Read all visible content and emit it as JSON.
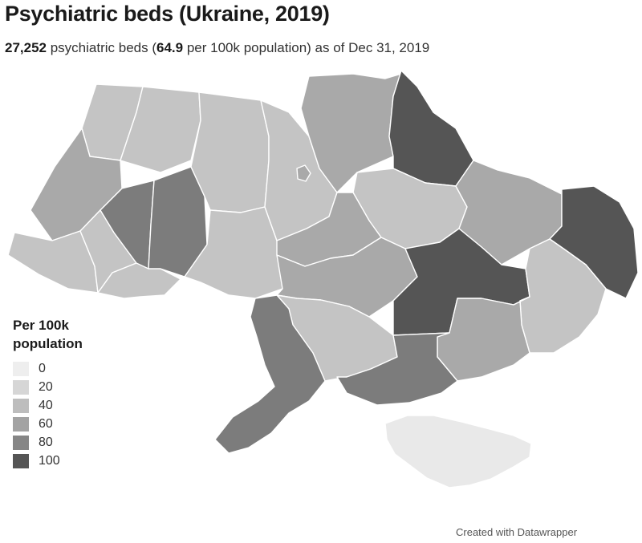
{
  "title": "Psychiatric beds (Ukraine, 2019)",
  "subtitle": {
    "total_beds": "27,252",
    "text1": " psychiatric beds (",
    "rate": "64.9",
    "text2": " per 100k population) as of Dec 31, 2019"
  },
  "legend": {
    "title": "Per 100k population",
    "items": [
      {
        "label": "0",
        "color": "#eeeeee"
      },
      {
        "label": "20",
        "color": "#d6d6d6"
      },
      {
        "label": "40",
        "color": "#bdbdbd"
      },
      {
        "label": "60",
        "color": "#a3a3a3"
      },
      {
        "label": "80",
        "color": "#868686"
      },
      {
        "label": "100",
        "color": "#555555"
      }
    ]
  },
  "map": {
    "colors": {
      "very_light": "#e9e9e9",
      "light": "#c4c4c4",
      "mid": "#a9a9a9",
      "mid_dark": "#939393",
      "dark": "#7c7c7c",
      "darkest": "#555555"
    }
  },
  "footer": "Created with Datawrapper"
}
